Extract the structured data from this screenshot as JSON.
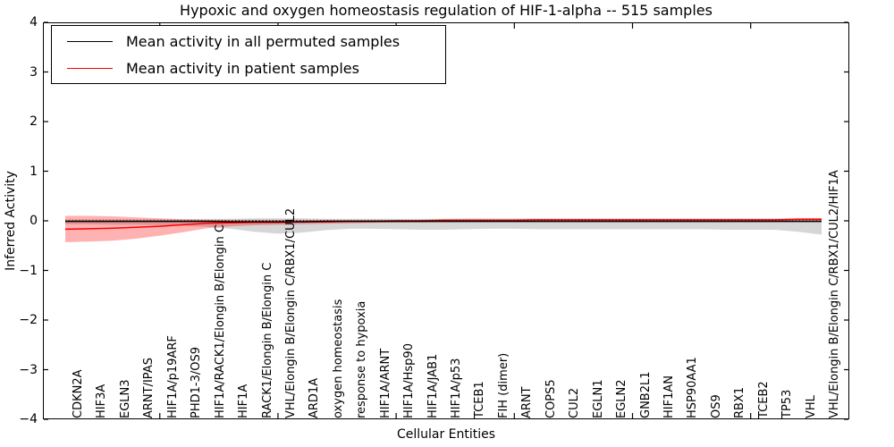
{
  "chart_data": {
    "type": "line",
    "title": "Hypoxic and oxygen homeostasis regulation of HIF-1-alpha -- 515 samples",
    "xlabel": "Cellular Entities",
    "ylabel": "Inferred Activity",
    "ylim": [
      -4,
      4
    ],
    "yticks": [
      4,
      3,
      2,
      1,
      0,
      -1,
      -2,
      -3,
      -4
    ],
    "grid": false,
    "legend_position": "upper left",
    "x_major_tick_indices": [
      4,
      9,
      14,
      19,
      24,
      29
    ],
    "reference_line": {
      "y": 0,
      "style": "dotted",
      "color": "#000000"
    },
    "categories": [
      "CDKN2A",
      "HIF3A",
      "EGLN3",
      "ARNT/IPAS",
      "HIF1A/p19ARF",
      "PHD1-3/OS9",
      "HIF1A/RACK1/Elongin B/Elongin C",
      "HIF1A",
      "RACK1/Elongin B/Elongin C",
      "VHL/Elongin B/Elongin C/RBX1/CUL2",
      "ARD1A",
      "oxygen homeostasis",
      "response to hypoxia",
      "HIF1A/ARNT",
      "HIF1A/Hsp90",
      "HIF1A/JAB1",
      "HIF1A/p53",
      "TCEB1",
      "FIH (dimer)",
      "ARNT",
      "COPS5",
      "CUL2",
      "EGLN1",
      "EGLN2",
      "GNB2L1",
      "HIF1AN",
      "HSP90AA1",
      "OS9",
      "RBX1",
      "TCEB2",
      "TP53",
      "VHL",
      "VHL/Elongin B/Elongin C/RBX1/CUL2/HIF1A"
    ],
    "series": [
      {
        "name": "Mean activity in all permuted samples",
        "color": "#000000",
        "band_color": "rgba(0,0,0,0.16)",
        "values": [
          -0.01,
          -0.01,
          -0.01,
          -0.01,
          -0.01,
          -0.01,
          -0.01,
          -0.02,
          -0.02,
          -0.02,
          -0.02,
          -0.01,
          -0.01,
          -0.01,
          -0.01,
          -0.01,
          -0.01,
          -0.01,
          -0.01,
          -0.01,
          -0.01,
          -0.01,
          -0.01,
          -0.01,
          -0.01,
          -0.01,
          -0.01,
          -0.01,
          -0.01,
          -0.01,
          -0.01,
          -0.01,
          -0.01
        ],
        "band_upper": [
          0.03,
          0.03,
          0.03,
          0.03,
          0.03,
          0.03,
          0.04,
          0.04,
          0.05,
          0.05,
          0.05,
          0.04,
          0.04,
          0.04,
          0.04,
          0.04,
          0.04,
          0.05,
          0.05,
          0.05,
          0.05,
          0.05,
          0.05,
          0.05,
          0.05,
          0.05,
          0.05,
          0.05,
          0.05,
          0.05,
          0.05,
          0.06,
          0.06
        ],
        "band_lower": [
          -0.07,
          -0.07,
          -0.08,
          -0.08,
          -0.09,
          -0.1,
          -0.12,
          -0.16,
          -0.22,
          -0.26,
          -0.24,
          -0.19,
          -0.16,
          -0.16,
          -0.17,
          -0.18,
          -0.18,
          -0.17,
          -0.16,
          -0.16,
          -0.17,
          -0.17,
          -0.17,
          -0.17,
          -0.17,
          -0.17,
          -0.17,
          -0.17,
          -0.18,
          -0.18,
          -0.18,
          -0.22,
          -0.28
        ]
      },
      {
        "name": "Mean activity in patient samples",
        "color": "#ff0000",
        "band_color": "rgba(255,0,0,0.30)",
        "values": [
          -0.17,
          -0.16,
          -0.15,
          -0.13,
          -0.11,
          -0.08,
          -0.05,
          -0.04,
          -0.03,
          -0.03,
          -0.02,
          -0.02,
          -0.01,
          -0.01,
          0.0,
          0.0,
          0.01,
          0.01,
          0.01,
          0.01,
          0.02,
          0.02,
          0.02,
          0.02,
          0.02,
          0.02,
          0.02,
          0.02,
          0.02,
          0.02,
          0.02,
          0.03,
          0.03
        ],
        "band_upper": [
          0.1,
          0.1,
          0.09,
          0.07,
          0.05,
          0.03,
          0.02,
          0.02,
          0.02,
          0.02,
          0.02,
          0.02,
          0.02,
          0.02,
          0.02,
          0.02,
          0.03,
          0.03,
          0.03,
          0.03,
          0.03,
          0.03,
          0.03,
          0.03,
          0.03,
          0.03,
          0.03,
          0.03,
          0.03,
          0.03,
          0.03,
          0.04,
          0.05
        ],
        "band_lower": [
          -0.43,
          -0.42,
          -0.4,
          -0.36,
          -0.3,
          -0.23,
          -0.15,
          -0.11,
          -0.09,
          -0.08,
          -0.07,
          -0.06,
          -0.05,
          -0.04,
          -0.03,
          -0.03,
          -0.02,
          -0.02,
          -0.02,
          -0.02,
          -0.01,
          -0.01,
          -0.01,
          -0.01,
          -0.01,
          -0.01,
          -0.01,
          -0.01,
          -0.01,
          -0.01,
          -0.01,
          0.0,
          -0.01
        ]
      }
    ]
  }
}
